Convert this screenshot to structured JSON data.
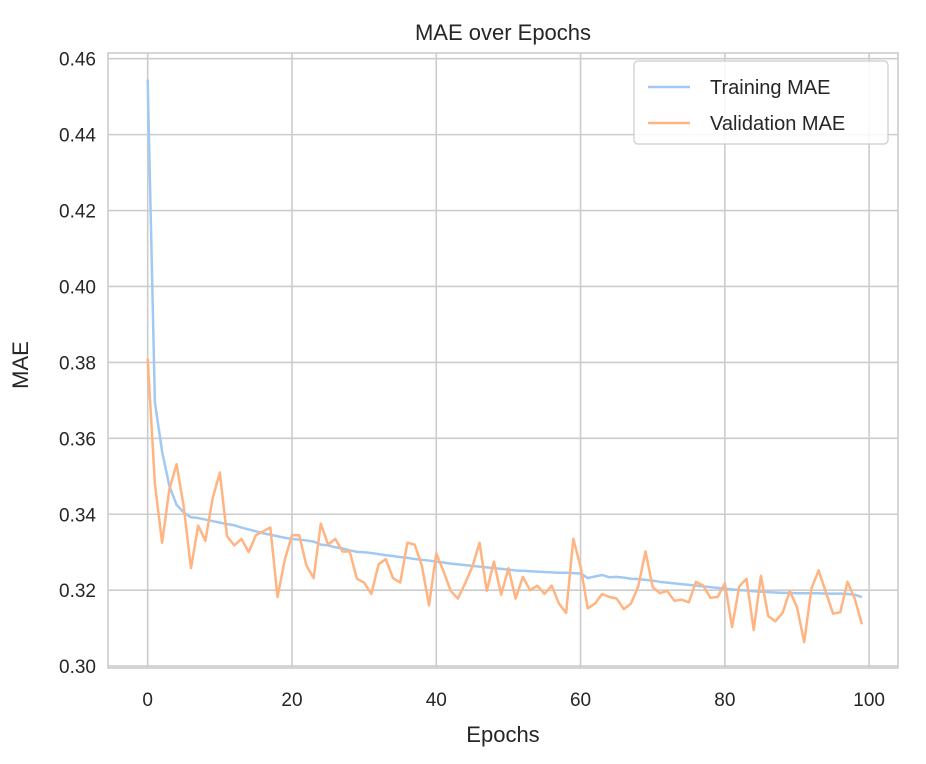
{
  "chart_data": {
    "type": "line",
    "title": "MAE over Epochs",
    "xlabel": "Epochs",
    "ylabel": "MAE",
    "xlim": [
      -5.5,
      104
    ],
    "ylim": [
      0.2995,
      0.4615
    ],
    "grid": true,
    "legend_position": "top-right",
    "x_ticks": [
      0,
      20,
      40,
      60,
      80,
      100
    ],
    "x_tick_labels": [
      "0",
      "20",
      "40",
      "60",
      "80",
      "100"
    ],
    "y_ticks": [
      0.3,
      0.32,
      0.34,
      0.36,
      0.38,
      0.4,
      0.42,
      0.44,
      0.46
    ],
    "y_tick_labels": [
      "0.30",
      "0.32",
      "0.34",
      "0.36",
      "0.38",
      "0.40",
      "0.42",
      "0.44",
      "0.46"
    ],
    "x": [
      0,
      1,
      2,
      3,
      4,
      5,
      6,
      7,
      8,
      9,
      10,
      11,
      12,
      13,
      14,
      15,
      16,
      17,
      18,
      19,
      20,
      21,
      22,
      23,
      24,
      25,
      26,
      27,
      28,
      29,
      30,
      31,
      32,
      33,
      34,
      35,
      36,
      37,
      38,
      39,
      40,
      41,
      42,
      43,
      44,
      45,
      46,
      47,
      48,
      49,
      50,
      51,
      52,
      53,
      54,
      55,
      56,
      57,
      58,
      59,
      60,
      61,
      62,
      63,
      64,
      65,
      66,
      67,
      68,
      69,
      70,
      71,
      72,
      73,
      74,
      75,
      76,
      77,
      78,
      79,
      80,
      81,
      82,
      83,
      84,
      85,
      86,
      87,
      88,
      89,
      90,
      91,
      92,
      93,
      94,
      95,
      96,
      97,
      98,
      99
    ],
    "series": [
      {
        "name": "Training MAE",
        "color": "#a1c9f4",
        "values": [
          0.4545,
          0.3695,
          0.3565,
          0.3475,
          0.3425,
          0.3405,
          0.3392,
          0.339,
          0.3386,
          0.3382,
          0.3378,
          0.3374,
          0.3371,
          0.3365,
          0.336,
          0.3355,
          0.335,
          0.3346,
          0.3342,
          0.3338,
          0.3335,
          0.3333,
          0.3331,
          0.3328,
          0.332,
          0.3318,
          0.3313,
          0.331,
          0.3305,
          0.3301,
          0.33,
          0.3298,
          0.3295,
          0.3292,
          0.329,
          0.3287,
          0.3285,
          0.3282,
          0.328,
          0.3278,
          0.3275,
          0.3273,
          0.327,
          0.3268,
          0.3266,
          0.3264,
          0.3262,
          0.326,
          0.3258,
          0.3256,
          0.3254,
          0.3252,
          0.3251,
          0.325,
          0.3249,
          0.3248,
          0.3247,
          0.3246,
          0.3246,
          0.3245,
          0.3244,
          0.3232,
          0.3236,
          0.324,
          0.3234,
          0.3235,
          0.3233,
          0.323,
          0.3229,
          0.3227,
          0.3225,
          0.3222,
          0.322,
          0.3218,
          0.3216,
          0.3214,
          0.3212,
          0.321,
          0.3208,
          0.3206,
          0.3204,
          0.3202,
          0.32,
          0.3199,
          0.3197,
          0.3196,
          0.3195,
          0.3194,
          0.3193,
          0.3193,
          0.3192,
          0.3192,
          0.3192,
          0.3192,
          0.3191,
          0.3191,
          0.3191,
          0.319,
          0.3188,
          0.3182
        ]
      },
      {
        "name": "Validation MAE",
        "color": "#ffb482",
        "values": [
          0.381,
          0.348,
          0.3325,
          0.3465,
          0.3532,
          0.342,
          0.3258,
          0.337,
          0.333,
          0.3442,
          0.351,
          0.3342,
          0.3318,
          0.3335,
          0.33,
          0.3345,
          0.3355,
          0.3365,
          0.3182,
          0.328,
          0.3345,
          0.3345,
          0.3265,
          0.3232,
          0.3375,
          0.332,
          0.3335,
          0.3302,
          0.3302,
          0.323,
          0.322,
          0.319,
          0.3268,
          0.3282,
          0.3232,
          0.322,
          0.3325,
          0.332,
          0.3265,
          0.316,
          0.3297,
          0.325,
          0.3198,
          0.3178,
          0.3218,
          0.3262,
          0.3325,
          0.3198,
          0.3275,
          0.3188,
          0.3258,
          0.3178,
          0.3235,
          0.32,
          0.3212,
          0.319,
          0.3212,
          0.3165,
          0.314,
          0.3335,
          0.3262,
          0.3152,
          0.3165,
          0.319,
          0.3182,
          0.3178,
          0.315,
          0.3165,
          0.321,
          0.3302,
          0.3208,
          0.3192,
          0.3198,
          0.3172,
          0.3175,
          0.3168,
          0.3222,
          0.3212,
          0.318,
          0.3182,
          0.3218,
          0.3103,
          0.321,
          0.323,
          0.3095,
          0.3238,
          0.3132,
          0.3118,
          0.314,
          0.3198,
          0.3155,
          0.3063,
          0.3205,
          0.3252,
          0.3195,
          0.3138,
          0.3142,
          0.3222,
          0.3178,
          0.311
        ]
      }
    ]
  }
}
